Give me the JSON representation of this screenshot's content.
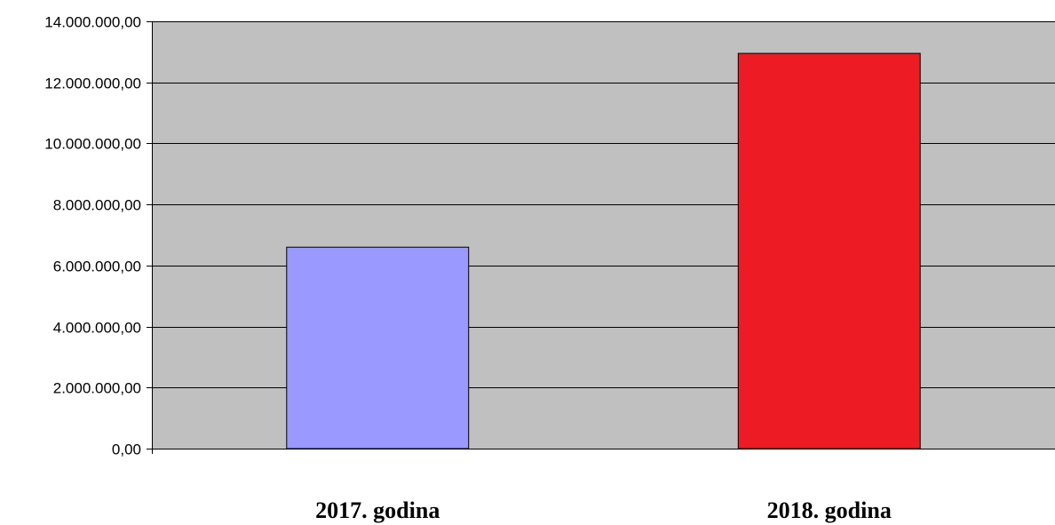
{
  "chart_data": {
    "type": "bar",
    "categories": [
      "2017. godina",
      "2018. godina"
    ],
    "values": [
      6600000,
      12950000
    ],
    "colors": [
      "#9999ff",
      "#ed1c24"
    ],
    "ylim": [
      0,
      14000000
    ],
    "yticks": [
      0,
      2000000,
      4000000,
      6000000,
      8000000,
      10000000,
      12000000,
      14000000
    ],
    "ytick_labels": [
      "0,00",
      "2.000.000,00",
      "4.000.000,00",
      "6.000.000,00",
      "8.000.000,00",
      "10.000.000,00",
      "12.000.000,00",
      "14.000.000,00"
    ],
    "grid": true,
    "plot_background": "#c0c0c0",
    "title": "",
    "xlabel": "",
    "ylabel": ""
  }
}
